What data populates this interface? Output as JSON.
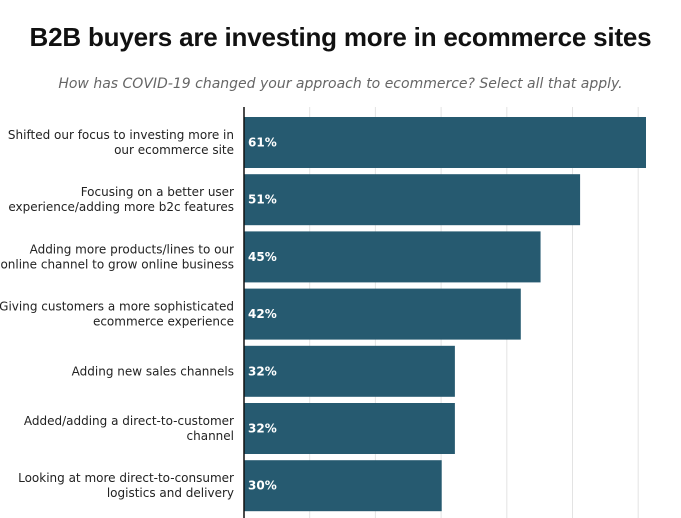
{
  "chart_data": {
    "type": "bar",
    "orientation": "horizontal",
    "title": "B2B buyers are investing more in ecommerce sites",
    "subtitle": "How has COVID-19 changed your approach to ecommerce? Select all that apply.",
    "categories": [
      [
        "Shifted our focus to investing more in",
        "our ecommerce site"
      ],
      [
        "Focusing on a better user",
        "experience/adding more b2c features"
      ],
      [
        "Adding more products/lines to our",
        "online channel to grow online business"
      ],
      [
        "Giving customers a more sophisticated",
        "ecommerce experience"
      ],
      [
        "Adding new sales channels"
      ],
      [
        "Added/adding a direct-to-customer",
        "channel"
      ],
      [
        "Looking at more direct-to-consumer",
        "logistics and delivery"
      ]
    ],
    "values": [
      61,
      51,
      45,
      42,
      32,
      32,
      30
    ],
    "value_labels": [
      "61%",
      "51%",
      "45%",
      "42%",
      "32%",
      "32%",
      "30%"
    ],
    "xlim": [
      0,
      61
    ],
    "grid": true,
    "bar_color": "#265a70"
  }
}
